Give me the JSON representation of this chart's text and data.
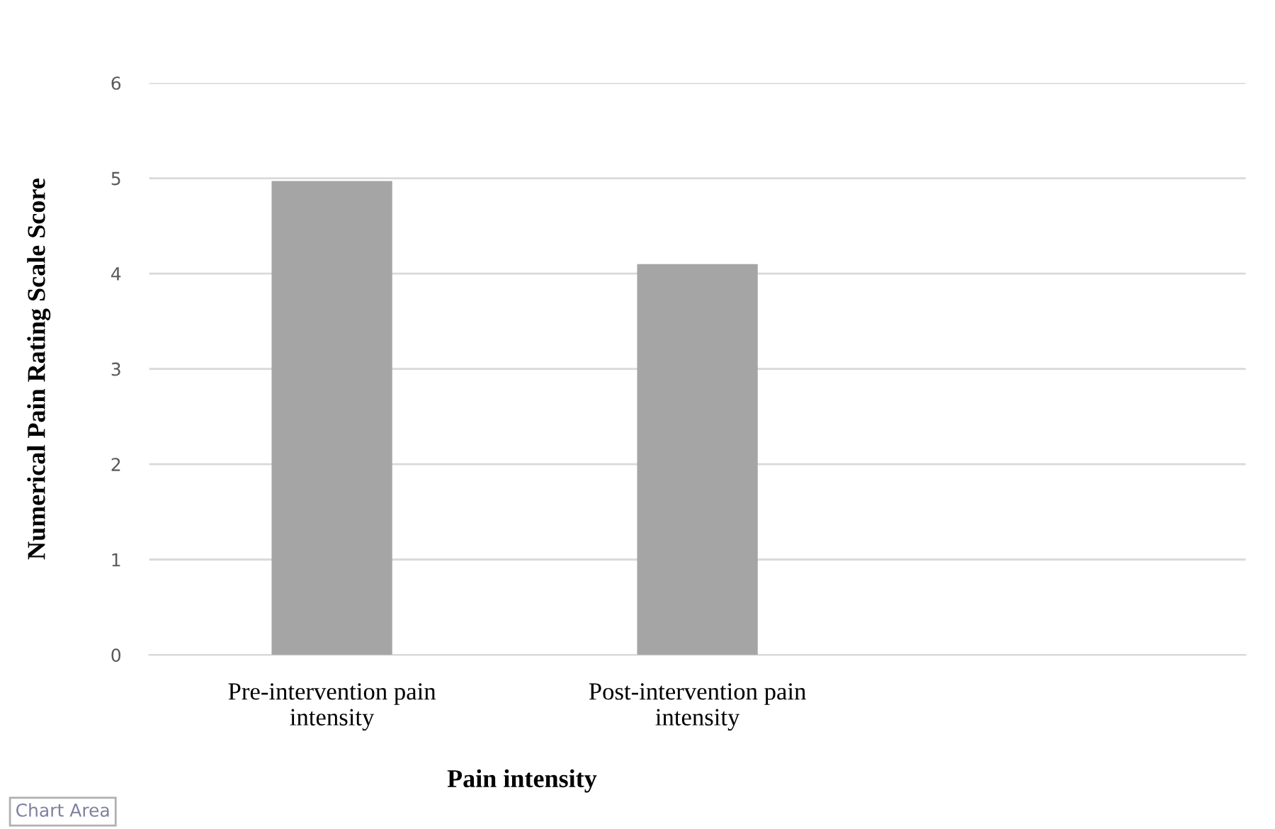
{
  "chart_data": {
    "type": "bar",
    "categories": [
      "Pre-intervention pain\nintensity",
      "Post-intervention pain\nintensity",
      null
    ],
    "values": [
      4.97,
      4.1,
      null
    ],
    "color": "#a5a5a5",
    "xlabel": "Pain intensity",
    "ylabel": "Numerical Pain Rating Scale Score",
    "ylim": [
      0,
      6
    ],
    "yticks": [
      0,
      1,
      2,
      3,
      4,
      5,
      6
    ],
    "grid": "y",
    "annotations": [
      "Chart Area"
    ]
  }
}
